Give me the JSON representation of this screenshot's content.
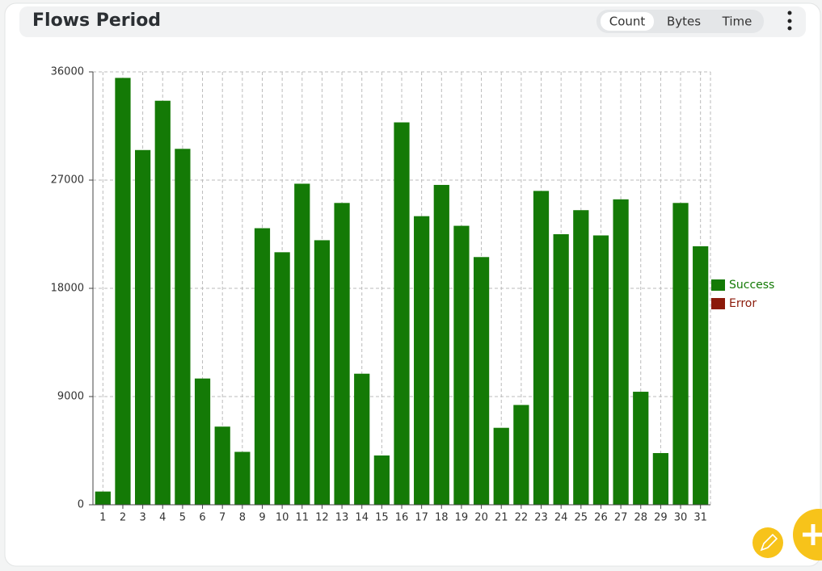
{
  "header": {
    "title": "Flows Period",
    "toggle": [
      "Count",
      "Bytes",
      "Time"
    ]
  },
  "chart_data": {
    "type": "bar",
    "stacked": true,
    "categories": [
      "1",
      "2",
      "3",
      "4",
      "5",
      "6",
      "7",
      "8",
      "9",
      "10",
      "11",
      "12",
      "13",
      "14",
      "15",
      "16",
      "17",
      "18",
      "19",
      "20",
      "21",
      "22",
      "23",
      "24",
      "25",
      "26",
      "27",
      "28",
      "29",
      "30",
      "31"
    ],
    "series": [
      {
        "name": "Success",
        "color": "#147a06",
        "values": [
          1100,
          35500,
          29500,
          33600,
          29600,
          10500,
          6500,
          4400,
          23000,
          21000,
          26700,
          22000,
          25100,
          10900,
          4100,
          31800,
          24000,
          26600,
          23200,
          20600,
          6400,
          8300,
          26100,
          22500,
          24500,
          22400,
          25400,
          9400,
          4300,
          25100,
          21500
        ]
      },
      {
        "name": "Error",
        "color": "#8b1a0a",
        "values": [
          0,
          0,
          0,
          0,
          0,
          0,
          0,
          0,
          0,
          0,
          0,
          0,
          0,
          0,
          0,
          0,
          0,
          0,
          0,
          0,
          0,
          0,
          0,
          0,
          0,
          0,
          0,
          0,
          0,
          0,
          0
        ]
      }
    ],
    "ylim": [
      0,
      36000
    ],
    "yticks": [
      0,
      9000,
      18000,
      27000,
      36000
    ],
    "grid": true,
    "legend": "right"
  }
}
